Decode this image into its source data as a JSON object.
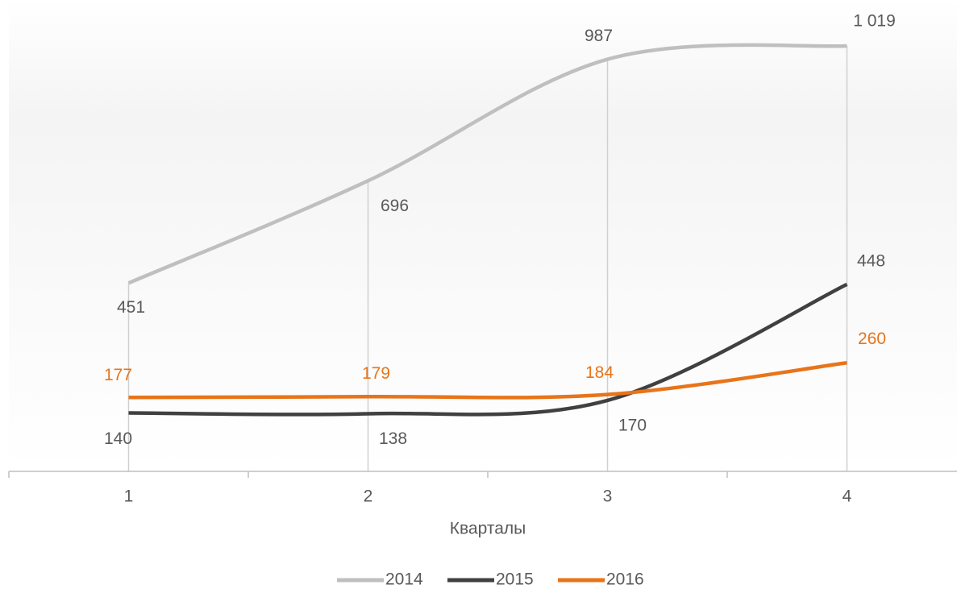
{
  "chart_data": {
    "type": "line",
    "x_label": "Кварталы",
    "categories": [
      "1",
      "2",
      "3",
      "4"
    ],
    "series": [
      {
        "name": "2014",
        "color": "#bfbfbf",
        "values": [
          451,
          696,
          987,
          1019
        ],
        "value_labels": [
          "451",
          "696",
          "987",
          "1 019"
        ]
      },
      {
        "name": "2015",
        "color": "#404040",
        "values": [
          140,
          138,
          170,
          448
        ]
      },
      {
        "name": "2016",
        "color": "#e8741a",
        "values": [
          177,
          179,
          184,
          260
        ]
      }
    ],
    "ylim": [
      0,
      1100
    ],
    "legend": "bottom"
  }
}
